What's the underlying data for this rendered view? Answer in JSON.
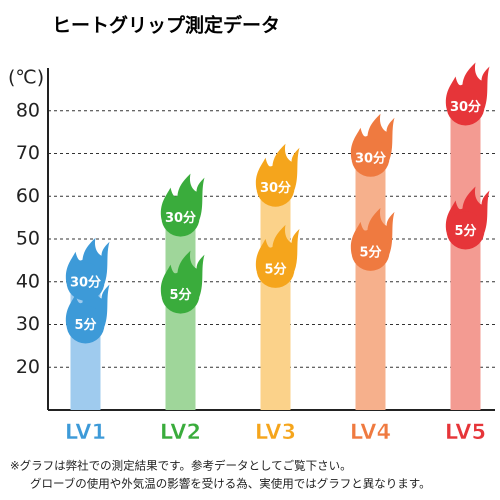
{
  "chart_data": {
    "type": "bar",
    "title": "ヒートグリップ測定データ",
    "y_label": "(℃)",
    "categories": [
      "LV1",
      "LV2",
      "LV3",
      "LV4",
      "LV5"
    ],
    "colors": [
      "#3d9ad8",
      "#3aac3c",
      "#f5a51c",
      "#ef7a40",
      "#e63539"
    ],
    "bar_colors": [
      "#9fcbee",
      "#9fd69a",
      "#fbd28a",
      "#f6b08c",
      "#f39b92"
    ],
    "series": [
      {
        "name": "5分",
        "values": [
          30,
          37,
          43,
          47,
          52
        ]
      },
      {
        "name": "30分",
        "values": [
          40,
          55,
          62,
          69,
          81
        ]
      }
    ],
    "ylim": [
      10,
      90
    ],
    "yticks": [
      20,
      30,
      40,
      50,
      60,
      70,
      80
    ],
    "grid": true,
    "notes": [
      "※グラフは弊社での測定結果です。参考データとしてご覧下さい。",
      "グローブの使用や外気温の影響を受ける為、実使用ではグラフと異なります。"
    ]
  }
}
